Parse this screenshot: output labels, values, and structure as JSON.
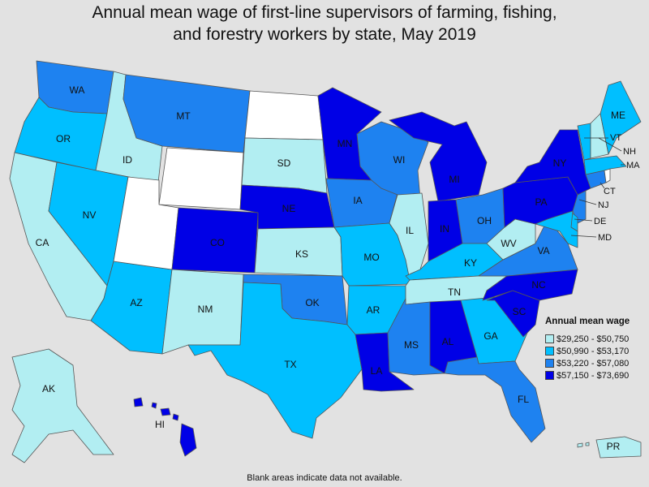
{
  "title": {
    "line1": "Annual mean wage of first-line supervisors of farming, fishing,",
    "line2": "and forestry workers by state, May 2019"
  },
  "legend": {
    "title": "Annual mean wage",
    "ranges": [
      {
        "label": "$29,250 - $50,750",
        "color": "#b2eef2"
      },
      {
        "label": "$50,990 - $53,170",
        "color": "#00bfff"
      },
      {
        "label": "$53,220 - $57,080",
        "color": "#1e82f0"
      },
      {
        "label": "$57,150 - $73,690",
        "color": "#0000e6"
      }
    ]
  },
  "blank_color": "#ffffff",
  "note": "Blank areas indicate data not available.",
  "states": {
    "WA": 2,
    "OR": 1,
    "CA": 0,
    "ID": 0,
    "NV": 1,
    "AZ": 1,
    "MT": 2,
    "WY": null,
    "UT": null,
    "CO": 3,
    "NM": 0,
    "ND": null,
    "SD": 0,
    "NE": 3,
    "KS": 0,
    "OK": 2,
    "TX": 1,
    "MN": 3,
    "IA": 2,
    "MO": 1,
    "AR": 1,
    "LA": 3,
    "WI": 2,
    "IL": 0,
    "MI": 3,
    "IN": 3,
    "OH": 2,
    "KY": 1,
    "TN": 0,
    "MS": 2,
    "AL": 3,
    "GA": 1,
    "FL": 2,
    "SC": 3,
    "NC": 3,
    "VA": 2,
    "WV": 0,
    "PA": 3,
    "NY": 3,
    "VT": 1,
    "NH": 0,
    "ME": 1,
    "MA": 1,
    "RI": null,
    "CT": 2,
    "NJ": 2,
    "DE": 1,
    "MD": 1,
    "AK": 0,
    "HI": 3,
    "PR": 0
  }
}
